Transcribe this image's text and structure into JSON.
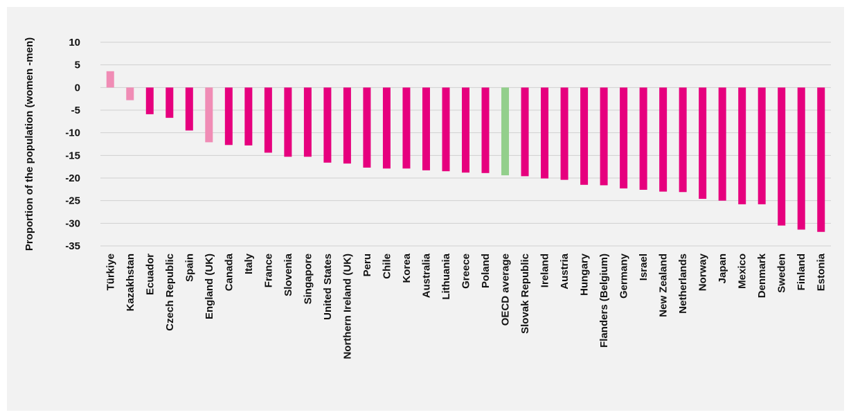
{
  "chart_data": {
    "type": "bar",
    "ylabel": "Proportion of the population (women -men)",
    "ylim": [
      -35,
      10
    ],
    "yticks": [
      10,
      5,
      0,
      -5,
      -10,
      -15,
      -20,
      -25,
      -30,
      -35
    ],
    "grid": true,
    "categories": [
      "Türkiye",
      "Kazakhstan",
      "Ecuador",
      "Czech Republic",
      "Spain",
      "England (UK)",
      "Canada",
      "Italy",
      "France",
      "Slovenia",
      "Singapore",
      "United States",
      "Northern Ireland (UK)",
      "Peru",
      "Chile",
      "Korea",
      "Australia",
      "Lithuania",
      "Greece",
      "Poland",
      "OECD average",
      "Slovak Republic",
      "Ireland",
      "Austria",
      "Hungary",
      "Flanders (Belgium)",
      "Germany",
      "Israel",
      "New Zealand",
      "Netherlands",
      "Norway",
      "Japan",
      "Mexico",
      "Denmark",
      "Sweden",
      "Finland",
      "Estonia"
    ],
    "values": [
      3.6,
      -2.8,
      -5.9,
      -6.7,
      -9.5,
      -12.1,
      -12.7,
      -12.8,
      -14.4,
      -15.3,
      -15.3,
      -16.6,
      -16.8,
      -17.7,
      -17.9,
      -17.9,
      -18.3,
      -18.5,
      -18.8,
      -18.9,
      -19.4,
      -19.6,
      -20.1,
      -20.4,
      -21.5,
      -21.6,
      -22.3,
      -22.6,
      -23.0,
      -23.1,
      -24.6,
      -25.0,
      -25.8,
      -25.8,
      -30.5,
      -31.4,
      -31.9
    ],
    "bar_colors": {
      "default": "#e6007e",
      "light": "#f08cb5",
      "average": "#93cf8c"
    },
    "bar_color_keys": [
      "light",
      "light",
      "default",
      "default",
      "default",
      "light",
      "default",
      "default",
      "default",
      "default",
      "default",
      "default",
      "default",
      "default",
      "default",
      "default",
      "default",
      "default",
      "default",
      "default",
      "average",
      "default",
      "default",
      "default",
      "default",
      "default",
      "default",
      "default",
      "default",
      "default",
      "default",
      "default",
      "default",
      "default",
      "default",
      "default",
      "default"
    ]
  }
}
